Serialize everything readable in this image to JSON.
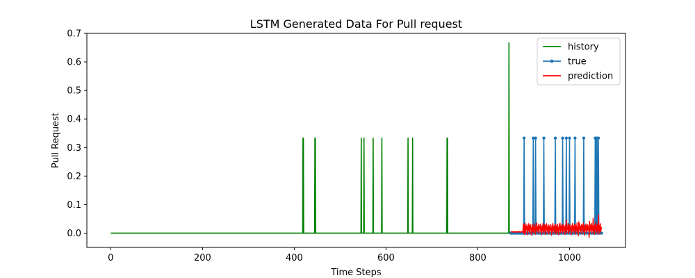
{
  "chart_data": {
    "type": "line",
    "title": "LSTM Generated Data For Pull request",
    "xlabel": "Time Steps",
    "ylabel": "Pull Request",
    "xlim": [
      -52,
      1122
    ],
    "ylim": [
      -0.05,
      0.7
    ],
    "xticks": [
      0,
      200,
      400,
      600,
      800,
      1000
    ],
    "yticks": [
      0.0,
      0.1,
      0.2,
      0.3,
      0.4,
      0.5,
      0.6,
      0.7
    ],
    "xtick_labels": [
      "0",
      "200",
      "400",
      "600",
      "800",
      "1000"
    ],
    "ytick_labels": [
      "0.0",
      "0.1",
      "0.2",
      "0.3",
      "0.4",
      "0.5",
      "0.6",
      "0.7"
    ],
    "grid": false,
    "legend_position": "top-right",
    "series": [
      {
        "name": "history",
        "color": "#008000",
        "marker": "none",
        "baseline": [
          0,
          0.0
        ],
        "x": [
          0,
          419,
          420,
          445,
          446,
          546,
          552,
          572,
          591,
          648,
          658,
          733,
          734,
          867,
          868,
          869
        ],
        "y": [
          0.0,
          0.333,
          0.333,
          0.333,
          0.333,
          0.333,
          0.333,
          0.333,
          0.333,
          0.333,
          0.333,
          0.333,
          0.333,
          0.0,
          0.667,
          0.0
        ]
      },
      {
        "name": "true",
        "color": "#1f77b4",
        "marker": "circle",
        "x_start": 872,
        "x_end": 1070,
        "spikes": [
          901,
          921,
          926,
          944,
          969,
          985,
          993,
          1000,
          1012,
          1031,
          1056,
          1058,
          1060,
          1063
        ],
        "spike_value": 0.333,
        "baseline": 0.0
      },
      {
        "name": "prediction",
        "color": "#ff0000",
        "marker": "none",
        "x_start": 872,
        "x_end": 1070,
        "values": [
          0.005,
          0.004,
          0.006,
          0.003,
          0.005,
          0.004,
          0.006,
          0.005,
          0.004,
          0.005,
          0.003,
          0.006,
          0.005,
          0.004,
          0.005,
          0.003,
          0.006,
          0.005,
          0.004,
          0.006,
          0.005,
          0.003,
          0.004,
          0.005,
          0.006,
          0.004,
          0.005,
          0.003,
          0.032,
          0.0,
          0.028,
          -0.005,
          0.035,
          0.002,
          0.025,
          0.012,
          0.03,
          -0.006,
          0.022,
          0.01,
          0.033,
          0.004,
          0.026,
          -0.003,
          0.03,
          0.015,
          0.018,
          -0.008,
          0.031,
          0.006,
          0.024,
          0.002,
          0.034,
          0.011,
          0.02,
          -0.004,
          0.028,
          0.013,
          0.036,
          0.003,
          0.022,
          0.009,
          0.03,
          -0.002,
          0.025,
          0.016,
          0.032,
          0.005,
          0.019,
          -0.006,
          0.027,
          0.01,
          0.034,
          0.001,
          0.023,
          0.008,
          0.03,
          -0.005,
          0.026,
          0.014,
          0.033,
          0.002,
          0.021,
          0.011,
          0.029,
          -0.003,
          0.024,
          0.007,
          0.031,
          0.012,
          0.018,
          -0.007,
          0.028,
          0.004,
          0.034,
          0.01,
          0.022,
          0.0,
          0.027,
          0.015,
          0.03,
          -0.004,
          0.025,
          0.008,
          0.032,
          0.003,
          0.02,
          -0.006,
          0.029,
          0.012,
          0.035,
          0.002,
          0.024,
          0.01,
          0.031,
          -0.002,
          0.026,
          0.006,
          0.03,
          0.013,
          0.022,
          -0.005,
          0.028,
          0.009,
          0.046,
          0.001,
          0.021,
          0.012,
          0.033,
          -0.003,
          0.027,
          0.007,
          0.03,
          0.015,
          0.019,
          -0.006,
          0.026,
          0.004,
          0.034,
          0.011,
          0.023,
          0.002,
          0.029,
          0.014,
          0.031,
          -0.004,
          0.025,
          0.008,
          0.036,
          0.003,
          0.02,
          -0.009,
          0.04,
          0.012,
          0.033,
          0.001,
          0.024,
          0.01,
          0.03,
          -0.003,
          0.027,
          0.016,
          0.035,
          0.005,
          0.021,
          -0.007,
          0.028,
          0.011,
          0.032,
          0.002,
          0.025,
          0.009,
          0.03,
          0.013,
          0.022,
          -0.015,
          0.041,
          0.006,
          0.029,
          0.012,
          0.034,
          -0.002,
          0.026,
          0.01,
          0.052,
          0.003,
          0.023,
          -0.005,
          0.031,
          0.014,
          0.038,
          0.001,
          0.025,
          0.008,
          0.03,
          -0.004,
          0.064,
          0.009,
          0.027,
          -0.002,
          0.033,
          0.006,
          0.02,
          0.012
        ]
      }
    ]
  }
}
